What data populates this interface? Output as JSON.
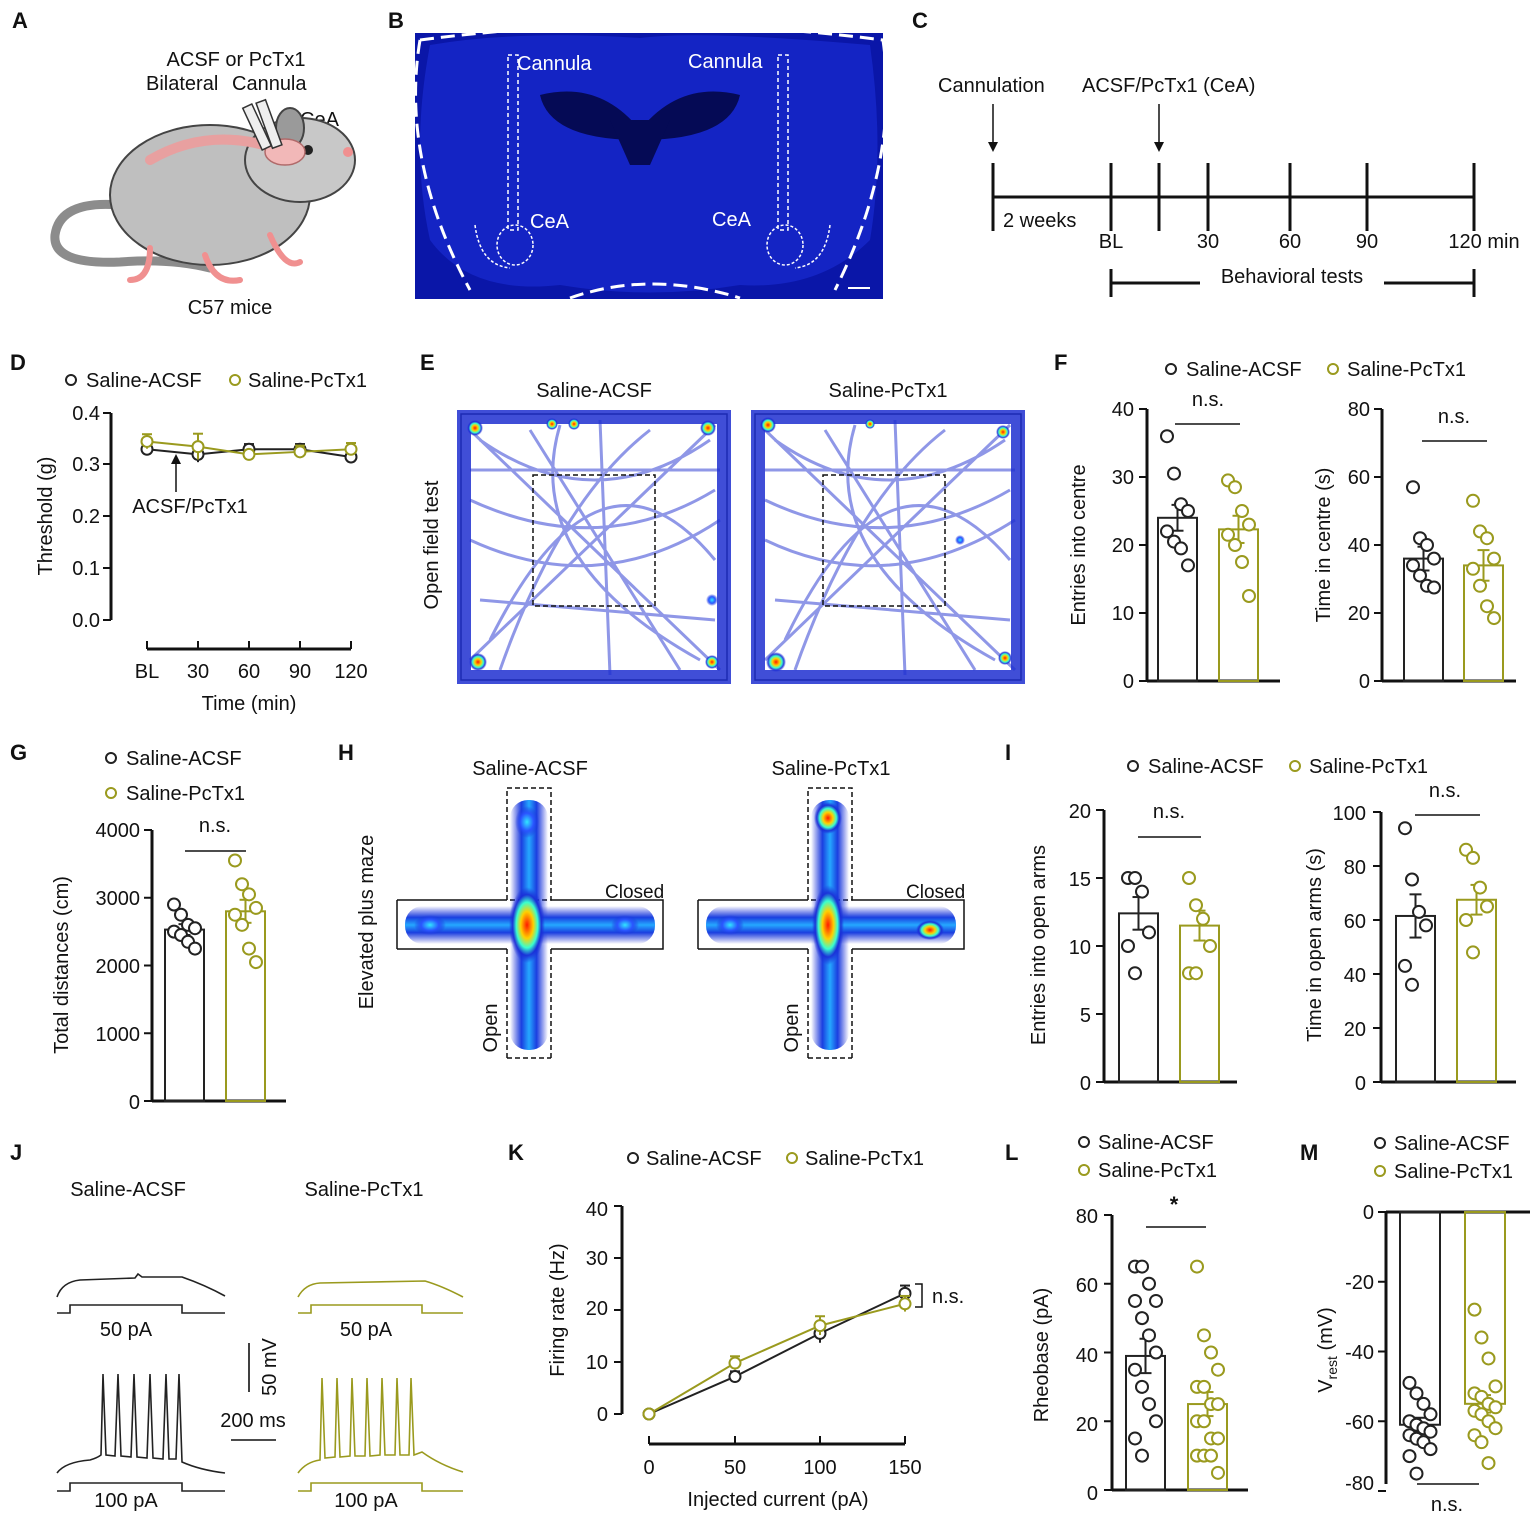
{
  "colors": {
    "acsf": "#222222",
    "pctx1": "#9a9a1e",
    "brain_bg": "#0a16a8",
    "heat_low": "#1a2bd6",
    "heat_high": "#ff2000"
  },
  "panelA": {
    "letter": "A",
    "line1": "ACSF or PcTx1",
    "line2a": "Bilateral",
    "line2b": "Cannula",
    "cea": "CeA",
    "caption": "C57 mice"
  },
  "panelB": {
    "letter": "B",
    "cannula_left": "Cannula",
    "cannula_right": "Cannula",
    "cea_left": "CeA",
    "cea_right": "CeA"
  },
  "panelC": {
    "letter": "C",
    "cannulation": "Cannulation",
    "injection": "ACSF/PcTx1 (CeA)",
    "weeks": "2 weeks",
    "ticks": [
      "BL",
      "30",
      "60",
      "90",
      "120 min"
    ],
    "behav": "Behavioral  tests"
  },
  "panelD": {
    "letter": "D",
    "legend": [
      "Saline-ACSF",
      "Saline-PcTx1"
    ],
    "ylabel": "Threshold (g)",
    "xlabel": "Time (min)",
    "yticks": [
      "0.4",
      "0.3",
      "0.2",
      "0.1",
      "0.0"
    ],
    "xticks": [
      "BL",
      "30",
      "60",
      "90",
      "120"
    ],
    "annotation": "ACSF/PcTx1"
  },
  "panelE": {
    "letter": "E",
    "side": "Open field test",
    "left": "Saline-ACSF",
    "right": "Saline-PcTx1"
  },
  "panelF": {
    "letter": "F",
    "legend": [
      "Saline-ACSF",
      "Saline-PcTx1"
    ],
    "ylabel1": "Entries into centre",
    "ylabel2": "Time in centre (s)",
    "ns1": "n.s.",
    "ns2": "n.s.",
    "yticks1": [
      "40",
      "30",
      "20",
      "10",
      "0"
    ],
    "yticks2": [
      "80",
      "60",
      "40",
      "20",
      "0"
    ]
  },
  "panelG": {
    "letter": "G",
    "legend": [
      "Saline-ACSF",
      "Saline-PcTx1"
    ],
    "ylabel": "Total distances (cm)",
    "ns": "n.s.",
    "yticks": [
      "4000",
      "3000",
      "2000",
      "1000",
      "0"
    ]
  },
  "panelH": {
    "letter": "H",
    "side": "Elevated plus maze",
    "left": "Saline-ACSF",
    "right": "Saline-PcTx1",
    "closed": "Closed",
    "open": "Open"
  },
  "panelI": {
    "letter": "I",
    "legend": [
      "Saline-ACSF",
      "Saline-PcTx1"
    ],
    "ylabel1": "Entries into open arms",
    "ylabel2": "Time in open arms (s)",
    "ns1": "n.s.",
    "ns2": "n.s.",
    "yticks1": [
      "20",
      "15",
      "10",
      "5",
      "0"
    ],
    "yticks2": [
      "100",
      "80",
      "60",
      "40",
      "20",
      "0"
    ]
  },
  "panelJ": {
    "letter": "J",
    "left": "Saline-ACSF",
    "right": "Saline-PcTx1",
    "i50": "50 pA",
    "i100": "100 pA",
    "scale_v": "50 mV",
    "scale_t": "200 ms"
  },
  "panelK": {
    "letter": "K",
    "legend": [
      "Saline-ACSF",
      "Saline-PcTx1"
    ],
    "ylabel": "Firing rate (Hz)",
    "xlabel": "Injected current (pA)",
    "ns": "n.s.",
    "yticks": [
      "40",
      "30",
      "20",
      "10",
      "0"
    ],
    "xticks": [
      "0",
      "50",
      "100",
      "150"
    ]
  },
  "panelL": {
    "letter": "L",
    "legend": [
      "Saline-ACSF",
      "Saline-PcTx1"
    ],
    "ylabel": "Rheobase (pA)",
    "star": "*",
    "yticks": [
      "80",
      "60",
      "40",
      "20",
      "0"
    ]
  },
  "panelM": {
    "letter": "M",
    "legend": [
      "Saline-ACSF",
      "Saline-PcTx1"
    ],
    "ylabel": "V",
    "ylabel_sub": "rest",
    "ylabel_unit": " (mV)",
    "ns": "n.s.",
    "yticks": [
      "0",
      "-20",
      "-40",
      "-60",
      "-80"
    ]
  },
  "chart_data": [
    {
      "type": "line",
      "panel": "D",
      "x": [
        "BL",
        "30",
        "60",
        "90",
        "120"
      ],
      "xlabel": "Time (min)",
      "ylabel": "Threshold (g)",
      "ylim": [
        0,
        0.4
      ],
      "series": [
        {
          "name": "Saline-ACSF",
          "values": [
            0.33,
            0.32,
            0.33,
            0.33,
            0.315
          ]
        },
        {
          "name": "Saline-PcTx1",
          "values": [
            0.345,
            0.335,
            0.32,
            0.325,
            0.33
          ]
        }
      ]
    },
    {
      "type": "bar",
      "panel": "F-left",
      "categories": [
        "Saline-ACSF",
        "Saline-PcTx1"
      ],
      "values": [
        24,
        22.3
      ],
      "ylabel": "Entries into centre",
      "ylim": [
        0,
        40
      ]
    },
    {
      "type": "bar",
      "panel": "F-right",
      "categories": [
        "Saline-ACSF",
        "Saline-PcTx1"
      ],
      "values": [
        36,
        34
      ],
      "ylabel": "Time in centre (s)",
      "ylim": [
        0,
        80
      ]
    },
    {
      "type": "bar",
      "panel": "G",
      "categories": [
        "Saline-ACSF",
        "Saline-PcTx1"
      ],
      "values": [
        2530,
        2800
      ],
      "ylabel": "Total distances (cm)",
      "ylim": [
        0,
        4000
      ]
    },
    {
      "type": "bar",
      "panel": "I-left",
      "categories": [
        "Saline-ACSF",
        "Saline-PcTx1"
      ],
      "values": [
        12.4,
        11.5
      ],
      "ylabel": "Entries into open arms",
      "ylim": [
        0,
        20
      ]
    },
    {
      "type": "bar",
      "panel": "I-right",
      "categories": [
        "Saline-ACSF",
        "Saline-PcTx1"
      ],
      "values": [
        61.5,
        67.5
      ],
      "ylabel": "Time in open arms (s)",
      "ylim": [
        0,
        100
      ]
    },
    {
      "type": "line",
      "panel": "K",
      "x": [
        0,
        50,
        100,
        150
      ],
      "xlabel": "Injected current (pA)",
      "ylabel": "Firing rate (Hz)",
      "ylim": [
        0,
        40
      ],
      "series": [
        {
          "name": "Saline-ACSF",
          "values": [
            0,
            7.2,
            15.5,
            23.2
          ]
        },
        {
          "name": "Saline-PcTx1",
          "values": [
            0,
            9.8,
            17,
            21.2
          ]
        }
      ]
    },
    {
      "type": "bar",
      "panel": "L",
      "categories": [
        "Saline-ACSF",
        "Saline-PcTx1"
      ],
      "values": [
        39,
        25
      ],
      "ylabel": "Rheobase (pA)",
      "ylim": [
        0,
        80
      ]
    },
    {
      "type": "bar",
      "panel": "M",
      "categories": [
        "Saline-ACSF",
        "Saline-PcTx1"
      ],
      "values": [
        -61,
        -55
      ],
      "ylabel": "Vrest (mV)",
      "ylim": [
        -80,
        0
      ]
    }
  ]
}
